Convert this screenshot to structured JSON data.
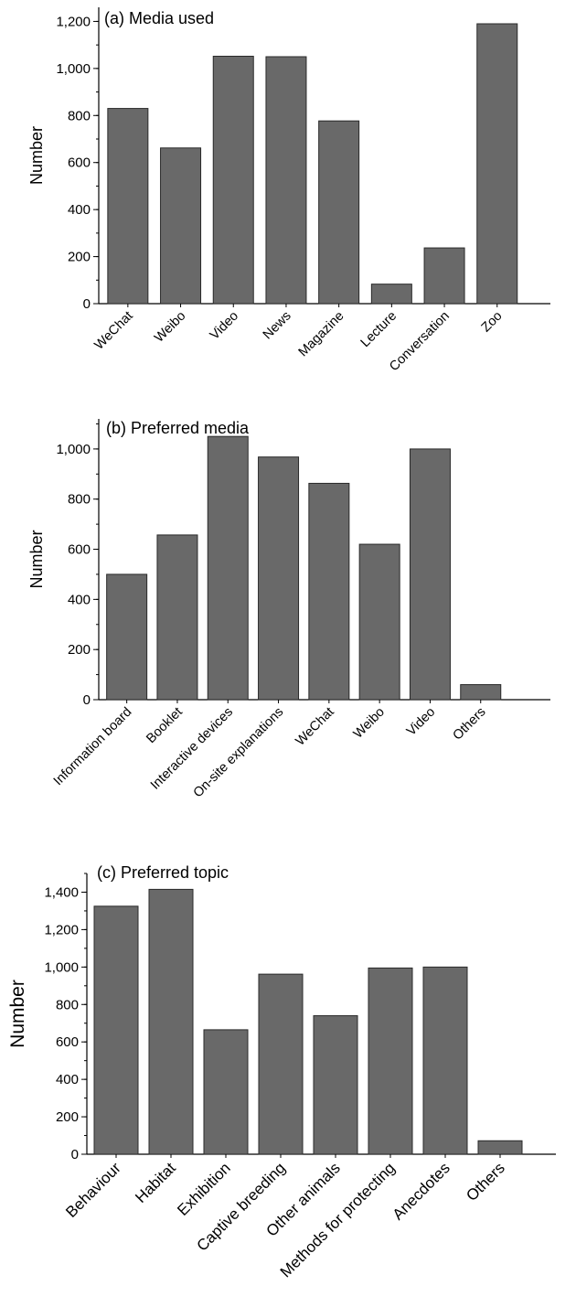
{
  "chart_data": [
    {
      "type": "bar",
      "title": "(a) Media used",
      "ylabel": "Number",
      "xlabel": "",
      "ylim": [
        0,
        1260
      ],
      "yticks": [
        0,
        200,
        400,
        600,
        800,
        1000,
        1200
      ],
      "ytick_labels": [
        "0",
        "200",
        "400",
        "600",
        "800",
        "1,000",
        "1,200"
      ],
      "categories": [
        "WeChat",
        "Weibo",
        "Video",
        "News",
        "Magazine",
        "Lecture",
        "Conversation",
        "Zoo"
      ],
      "values": [
        830,
        662,
        1052,
        1050,
        777,
        83,
        237,
        1190
      ],
      "color": "#696969"
    },
    {
      "type": "bar",
      "title": "(b) Preferred media",
      "ylabel": "Number",
      "xlabel": "",
      "ylim": [
        0,
        1120
      ],
      "yticks": [
        0,
        200,
        400,
        600,
        800,
        1000
      ],
      "ytick_labels": [
        "0",
        "200",
        "400",
        "600",
        "800",
        "1,000"
      ],
      "categories": [
        "Information board",
        "Booklet",
        "Interactive devices",
        "On-site explanations",
        "WeChat",
        "Weibo",
        "Video",
        "Others"
      ],
      "values": [
        500,
        657,
        1050,
        968,
        863,
        620,
        1000,
        60
      ],
      "color": "#696969"
    },
    {
      "type": "bar",
      "title": "(c) Preferred topic",
      "ylabel": "Number",
      "xlabel": "",
      "ylim": [
        0,
        1500
      ],
      "yticks": [
        0,
        200,
        400,
        600,
        800,
        1000,
        1200,
        1400
      ],
      "ytick_labels": [
        "0",
        "200",
        "400",
        "600",
        "800",
        "1,000",
        "1,200",
        "1,400"
      ],
      "categories": [
        "Behaviour",
        "Habitat",
        "Exhibition",
        "Captive breeding",
        "Other animals",
        "Methods for protecting",
        "Anecdotes",
        "Others"
      ],
      "values": [
        1325,
        1415,
        665,
        962,
        740,
        995,
        1000,
        72
      ],
      "color": "#696969"
    }
  ]
}
